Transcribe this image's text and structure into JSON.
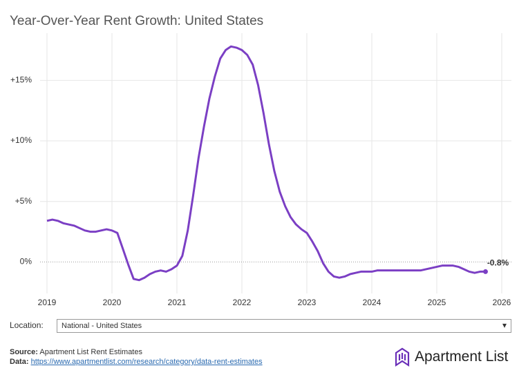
{
  "chart_data": {
    "type": "line",
    "title": "Year-Over-Year Rent Growth: United States",
    "x": [
      2019,
      2019.083,
      2019.167,
      2019.25,
      2019.333,
      2019.417,
      2019.5,
      2019.583,
      2019.667,
      2019.75,
      2019.833,
      2019.917,
      2020,
      2020.083,
      2020.167,
      2020.25,
      2020.333,
      2020.417,
      2020.5,
      2020.583,
      2020.667,
      2020.75,
      2020.833,
      2020.917,
      2021,
      2021.083,
      2021.167,
      2021.25,
      2021.333,
      2021.417,
      2021.5,
      2021.583,
      2021.667,
      2021.75,
      2021.833,
      2021.917,
      2022,
      2022.083,
      2022.167,
      2022.25,
      2022.333,
      2022.417,
      2022.5,
      2022.583,
      2022.667,
      2022.75,
      2022.833,
      2022.917,
      2023,
      2023.083,
      2023.167,
      2023.25,
      2023.333,
      2023.417,
      2023.5,
      2023.583,
      2023.667,
      2023.75,
      2023.833,
      2023.917,
      2024,
      2024.083,
      2024.167,
      2024.25,
      2024.333,
      2024.417,
      2024.5,
      2024.583,
      2024.667,
      2024.75,
      2024.833,
      2024.917,
      2025,
      2025.083,
      2025.167,
      2025.25,
      2025.333,
      2025.417,
      2025.5,
      2025.583,
      2025.667,
      2025.75
    ],
    "series": [
      {
        "name": "National - United States",
        "color": "#7b3fc4",
        "values": [
          3.4,
          3.5,
          3.4,
          3.2,
          3.1,
          3.0,
          2.8,
          2.6,
          2.5,
          2.5,
          2.6,
          2.7,
          2.6,
          2.4,
          1.1,
          -0.2,
          -1.4,
          -1.5,
          -1.3,
          -1.0,
          -0.8,
          -0.7,
          -0.8,
          -0.6,
          -0.3,
          0.5,
          2.6,
          5.5,
          8.6,
          11.2,
          13.5,
          15.3,
          16.8,
          17.5,
          17.8,
          17.7,
          17.5,
          17.1,
          16.3,
          14.6,
          12.3,
          9.7,
          7.5,
          5.8,
          4.6,
          3.7,
          3.1,
          2.7,
          2.4,
          1.7,
          0.9,
          -0.1,
          -0.8,
          -1.2,
          -1.3,
          -1.2,
          -1.0,
          -0.9,
          -0.8,
          -0.8,
          -0.8,
          -0.7,
          -0.7,
          -0.7,
          -0.7,
          -0.7,
          -0.7,
          -0.7,
          -0.7,
          -0.7,
          -0.6,
          -0.5,
          -0.4,
          -0.3,
          -0.3,
          -0.3,
          -0.4,
          -0.6,
          -0.8,
          -0.9,
          -0.8,
          -0.8
        ],
        "value_labels": [
          null,
          null,
          null,
          null,
          null,
          null,
          null,
          null,
          null,
          null,
          null,
          null,
          null,
          null,
          null,
          null,
          null,
          null,
          null,
          null,
          null,
          null,
          null,
          null,
          null,
          null,
          null,
          null,
          null,
          null,
          null,
          null,
          null,
          null,
          null,
          null,
          null,
          null,
          null,
          null,
          null,
          null,
          null,
          null,
          null,
          null,
          null,
          null,
          null,
          null,
          null,
          null,
          null,
          null,
          null,
          null,
          null,
          null,
          null,
          null,
          null,
          null,
          null,
          null,
          null,
          null,
          null,
          null,
          null,
          null,
          null,
          null,
          null,
          null,
          null,
          null,
          null,
          null,
          null,
          null,
          null,
          "-0.8%"
        ]
      }
    ],
    "xlim": [
      2019,
      2026
    ],
    "xticks": [
      2019,
      2020,
      2021,
      2022,
      2023,
      2024,
      2025,
      2026
    ],
    "ylim": [
      -2.6,
      18.9
    ],
    "yticks": [
      {
        "value": 0,
        "label": "0%"
      },
      {
        "value": 5,
        "label": "+5%"
      },
      {
        "value": 10,
        "label": "+10%"
      },
      {
        "value": 15,
        "label": "+15%"
      }
    ],
    "grid": true
  },
  "controls": {
    "location_label": "Location:",
    "location_value": "National - United States"
  },
  "footer": {
    "source_label": "Source:",
    "source": "Apartment List Rent Estimates",
    "data_label": "Data:",
    "data_url": "https://www.apartmentlist.com/research/category/data-rent-estimates",
    "logo": "Apartment List"
  }
}
